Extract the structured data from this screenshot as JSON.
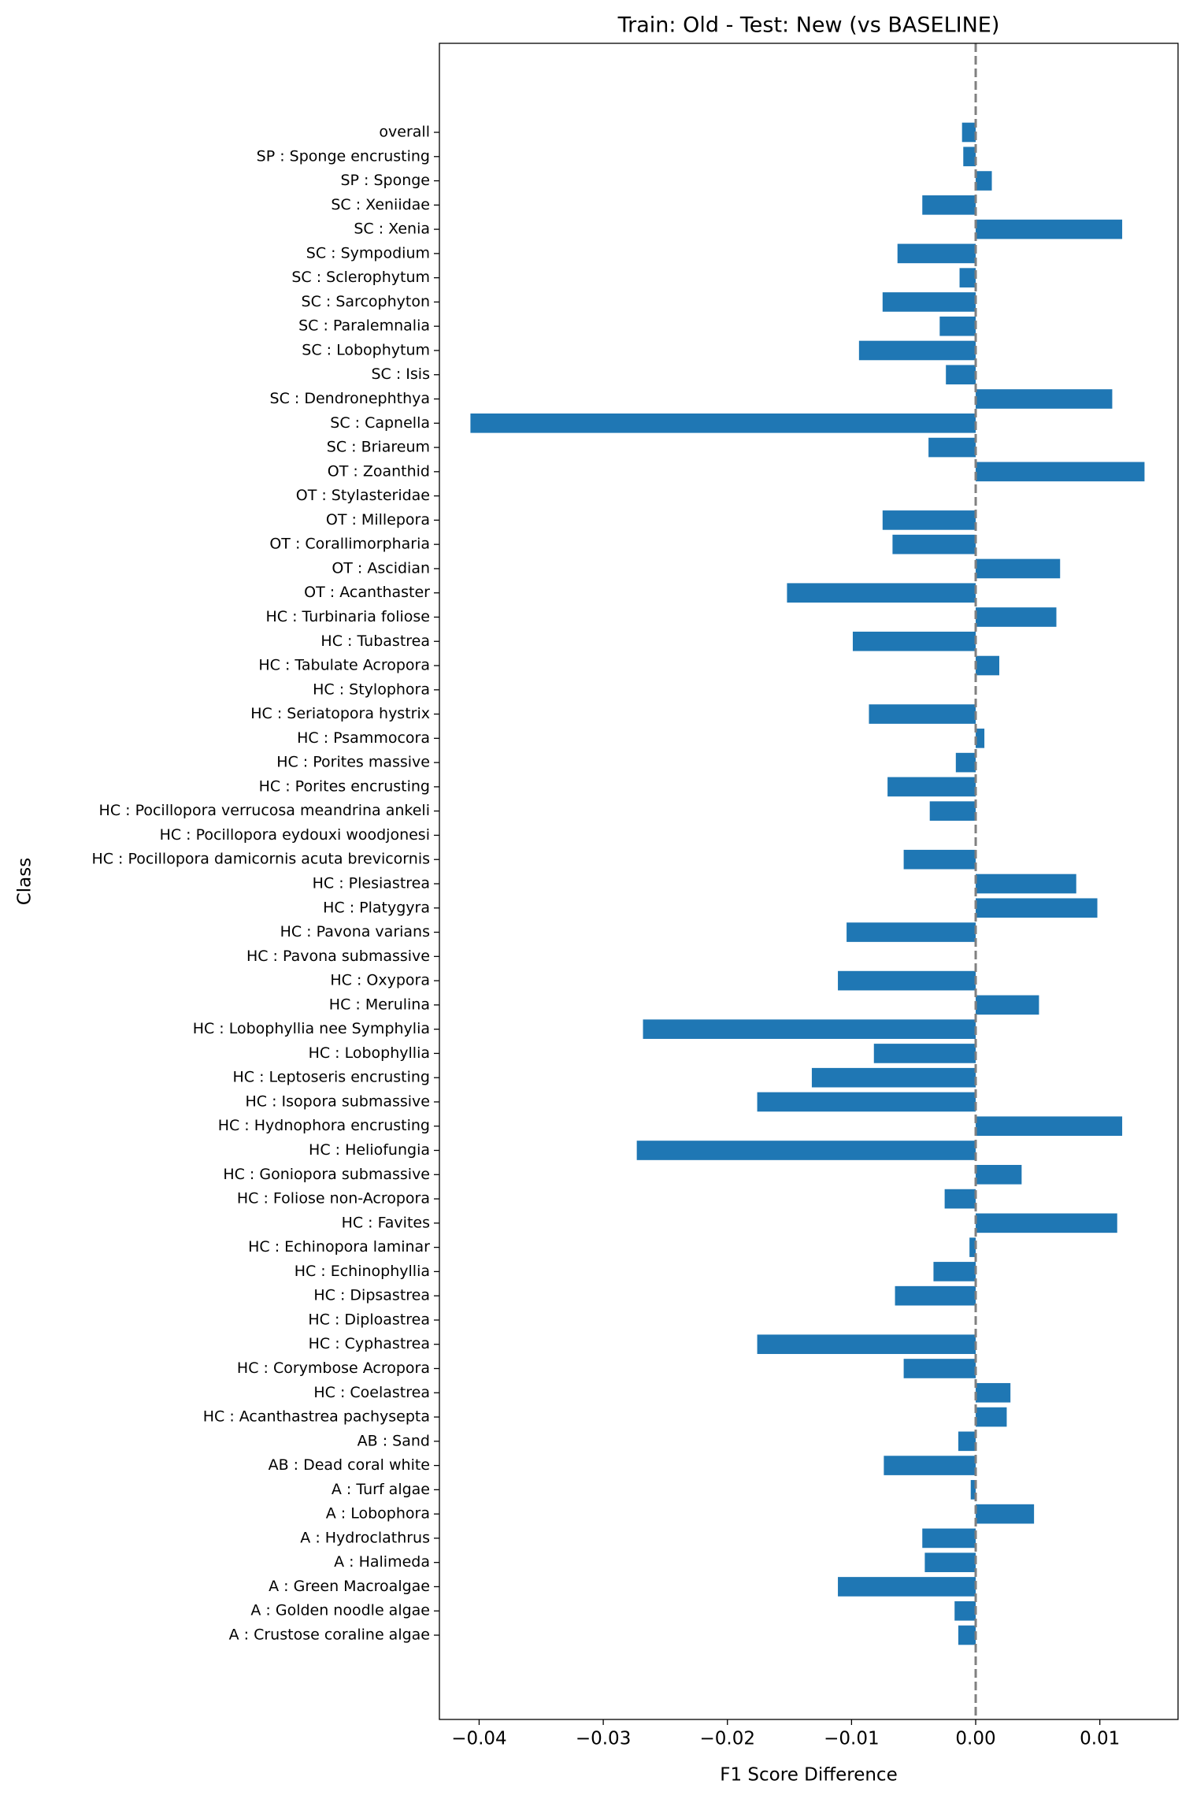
{
  "chart_data": {
    "type": "barh",
    "title": "Train: Old - Test: New (vs BASELINE)",
    "x_label": "F1 Score Difference",
    "y_label": "Class",
    "color": "#1f77b4",
    "categories": [
      "overall",
      "SP : Sponge encrusting",
      "SP : Sponge",
      "SC : Xeniidae",
      "SC : Xenia",
      "SC : Sympodium",
      "SC : Sclerophytum",
      "SC : Sarcophyton",
      "SC : Paralemnalia",
      "SC : Lobophytum",
      "SC : Isis",
      "SC : Dendronephthya",
      "SC : Capnella",
      "SC : Briareum",
      "OT : Zoanthid",
      "OT : Stylasteridae",
      "OT : Millepora",
      "OT : Corallimorpharia",
      "OT : Ascidian",
      "OT : Acanthaster",
      "HC : Turbinaria foliose",
      "HC : Tubastrea",
      "HC : Tabulate Acropora",
      "HC : Stylophora",
      "HC : Seriatopora hystrix",
      "HC : Psammocora",
      "HC : Porites massive",
      "HC : Porites encrusting",
      "HC : Pocillopora verrucosa meandrina ankeli",
      "HC : Pocillopora eydouxi woodjonesi",
      "HC : Pocillopora damicornis acuta brevicornis",
      "HC : Plesiastrea",
      "HC : Platygyra",
      "HC : Pavona varians",
      "HC : Pavona submassive",
      "HC : Oxypora",
      "HC : Merulina",
      "HC : Lobophyllia nee Symphylia",
      "HC : Lobophyllia",
      "HC : Leptoseris encrusting",
      "HC : Isopora submassive",
      "HC : Hydnophora encrusting",
      "HC : Heliofungia",
      "HC : Goniopora submassive",
      "HC : Foliose non-Acropora",
      "HC : Favites",
      "HC : Echinopora laminar",
      "HC : Echinophyllia",
      "HC : Dipsastrea",
      "HC : Diploastrea",
      "HC : Cyphastrea",
      "HC : Corymbose Acropora",
      "HC : Coelastrea",
      "HC : Acanthastrea pachysepta",
      "AB : Sand",
      "AB : Dead coral white",
      "A : Turf algae",
      "A : Lobophora",
      "A : Hydroclathrus",
      "A : Halimeda",
      "A : Green Macroalgae",
      "A : Golden noodle algae",
      "A : Crustose coraline algae"
    ],
    "values": [
      -0.0011,
      -0.001,
      0.0013,
      -0.0043,
      0.0118,
      -0.0063,
      -0.0013,
      -0.0075,
      -0.0029,
      -0.0094,
      -0.0024,
      0.011,
      -0.0407,
      -0.0038,
      0.0136,
      0,
      -0.0075,
      -0.0067,
      0.0068,
      -0.0152,
      0.0065,
      -0.0099,
      0.0019,
      0,
      -0.0086,
      0.0007,
      -0.0016,
      -0.0071,
      -0.0037,
      0,
      -0.0058,
      0.0081,
      0.0098,
      -0.0104,
      0,
      -0.0111,
      0.0051,
      -0.0268,
      -0.0082,
      -0.0132,
      -0.0176,
      0.0118,
      -0.0273,
      0.0037,
      -0.0025,
      0.0114,
      -0.0005,
      -0.0034,
      -0.0065,
      0,
      -0.0176,
      -0.0058,
      0.0028,
      0.0025,
      -0.0014,
      -0.0074,
      -0.0004,
      0.0047,
      -0.0043,
      -0.0041,
      -0.0111,
      -0.0017,
      -0.0014
    ],
    "xlim": [
      -0.0432,
      0.0163
    ],
    "xticks": [
      {
        "value": -0.04,
        "label": "−0.04"
      },
      {
        "value": -0.03,
        "label": "−0.03"
      },
      {
        "value": -0.02,
        "label": "−0.02"
      },
      {
        "value": -0.01,
        "label": "−0.01"
      },
      {
        "value": 0,
        "label": "0.00"
      },
      0.01
    ],
    "reference_line": 0
  }
}
